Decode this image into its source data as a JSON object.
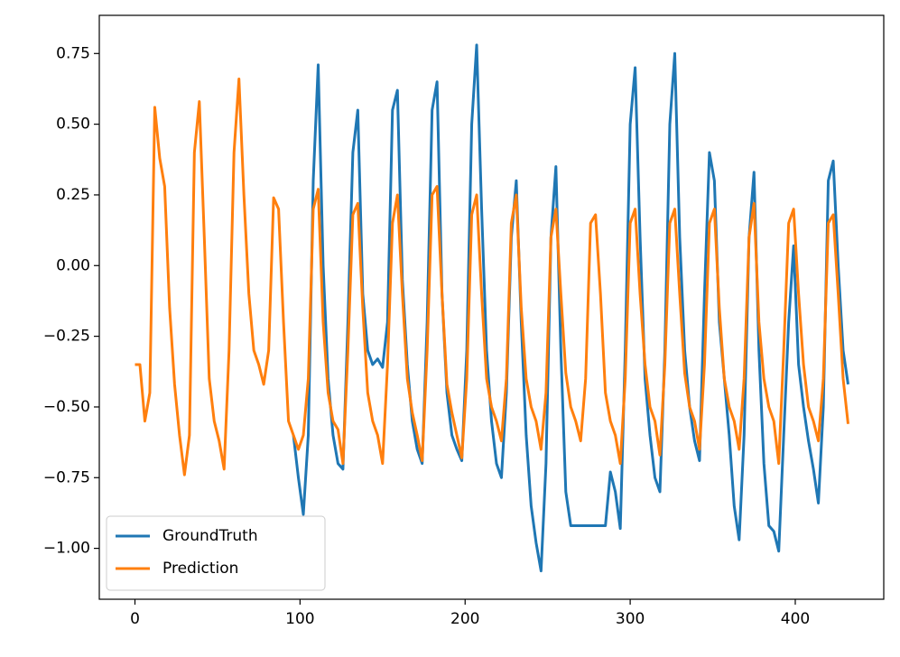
{
  "chart_data": {
    "type": "line",
    "x": [
      0,
      3,
      6,
      9,
      12,
      15,
      18,
      21,
      24,
      27,
      30,
      33,
      36,
      39,
      42,
      45,
      48,
      51,
      54,
      57,
      60,
      63,
      66,
      69,
      72,
      75,
      78,
      81,
      84,
      87,
      90,
      93,
      96,
      99,
      102,
      105,
      108,
      111,
      114,
      117,
      120,
      123,
      126,
      129,
      132,
      135,
      138,
      141,
      144,
      147,
      150,
      153,
      156,
      159,
      162,
      165,
      168,
      171,
      174,
      177,
      180,
      183,
      186,
      189,
      192,
      195,
      198,
      201,
      204,
      207,
      210,
      213,
      216,
      219,
      222,
      225,
      228,
      231,
      234,
      237,
      240,
      243,
      246,
      249,
      252,
      255,
      258,
      261,
      264,
      267,
      270,
      273,
      276,
      279,
      282,
      285,
      288,
      291,
      294,
      297,
      300,
      303,
      306,
      309,
      312,
      315,
      318,
      321,
      324,
      327,
      330,
      333,
      336,
      339,
      342,
      345,
      348,
      351,
      354,
      357,
      360,
      363,
      366,
      369,
      372,
      375,
      378,
      381,
      384,
      387,
      390,
      393,
      396,
      399,
      402,
      405,
      408,
      411,
      414,
      417,
      420,
      423,
      426,
      429,
      432
    ],
    "series": [
      {
        "name": "GroundTruth",
        "color": "#1f77b4",
        "values": [
          null,
          null,
          null,
          null,
          null,
          null,
          null,
          null,
          null,
          null,
          null,
          null,
          null,
          null,
          null,
          null,
          null,
          null,
          null,
          null,
          null,
          null,
          null,
          null,
          null,
          null,
          null,
          null,
          null,
          null,
          null,
          null,
          -0.6,
          -0.75,
          -0.88,
          -0.6,
          0.3,
          0.71,
          0.0,
          -0.4,
          -0.6,
          -0.7,
          -0.72,
          -0.2,
          0.4,
          0.55,
          -0.1,
          -0.3,
          -0.35,
          -0.33,
          -0.36,
          -0.2,
          0.55,
          0.62,
          -0.05,
          -0.35,
          -0.55,
          -0.65,
          -0.7,
          -0.2,
          0.55,
          0.65,
          -0.1,
          -0.45,
          -0.6,
          -0.65,
          -0.69,
          -0.3,
          0.5,
          0.78,
          0.2,
          -0.3,
          -0.55,
          -0.7,
          -0.75,
          -0.45,
          0.1,
          0.3,
          -0.2,
          -0.6,
          -0.85,
          -0.98,
          -1.08,
          -0.7,
          0.1,
          0.35,
          -0.3,
          -0.8,
          -0.92,
          -0.92,
          -0.92,
          -0.92,
          -0.92,
          -0.92,
          -0.92,
          -0.92,
          -0.73,
          -0.8,
          -0.93,
          -0.3,
          0.5,
          0.7,
          0.1,
          -0.4,
          -0.6,
          -0.75,
          -0.8,
          -0.3,
          0.5,
          0.75,
          0.1,
          -0.3,
          -0.5,
          -0.62,
          -0.69,
          -0.1,
          0.4,
          0.3,
          -0.2,
          -0.4,
          -0.6,
          -0.85,
          -0.97,
          -0.6,
          0.1,
          0.33,
          -0.3,
          -0.7,
          -0.92,
          -0.94,
          -1.01,
          -0.6,
          -0.2,
          0.07,
          -0.35,
          -0.5,
          -0.62,
          -0.72,
          -0.84,
          -0.5,
          0.3,
          0.37,
          0.0,
          -0.3,
          -0.42
        ]
      },
      {
        "name": "Prediction",
        "color": "#ff7f0e",
        "values": [
          -0.35,
          -0.35,
          -0.55,
          -0.45,
          0.56,
          0.38,
          0.28,
          -0.15,
          -0.42,
          -0.6,
          -0.74,
          -0.6,
          0.4,
          0.58,
          0.1,
          -0.4,
          -0.55,
          -0.62,
          -0.72,
          -0.3,
          0.4,
          0.66,
          0.25,
          -0.1,
          -0.3,
          -0.35,
          -0.42,
          -0.3,
          0.24,
          0.2,
          -0.2,
          -0.55,
          -0.6,
          -0.65,
          -0.6,
          -0.4,
          0.2,
          0.27,
          -0.2,
          -0.45,
          -0.55,
          -0.58,
          -0.7,
          -0.3,
          0.18,
          0.22,
          -0.15,
          -0.45,
          -0.55,
          -0.6,
          -0.7,
          -0.35,
          0.15,
          0.25,
          -0.1,
          -0.4,
          -0.52,
          -0.6,
          -0.69,
          -0.3,
          0.25,
          0.28,
          -0.1,
          -0.42,
          -0.52,
          -0.6,
          -0.68,
          -0.4,
          0.18,
          0.25,
          -0.1,
          -0.4,
          -0.5,
          -0.55,
          -0.62,
          -0.4,
          0.15,
          0.25,
          -0.15,
          -0.4,
          -0.5,
          -0.55,
          -0.65,
          -0.45,
          0.1,
          0.2,
          -0.1,
          -0.38,
          -0.5,
          -0.55,
          -0.62,
          -0.4,
          0.15,
          0.18,
          -0.1,
          -0.45,
          -0.55,
          -0.6,
          -0.7,
          -0.4,
          0.15,
          0.2,
          -0.1,
          -0.35,
          -0.5,
          -0.55,
          -0.67,
          -0.35,
          0.15,
          0.2,
          -0.1,
          -0.38,
          -0.5,
          -0.55,
          -0.65,
          -0.35,
          0.15,
          0.2,
          -0.15,
          -0.4,
          -0.5,
          -0.55,
          -0.65,
          -0.4,
          0.1,
          0.22,
          -0.2,
          -0.4,
          -0.5,
          -0.55,
          -0.7,
          -0.3,
          0.15,
          0.2,
          -0.1,
          -0.35,
          -0.5,
          -0.55,
          -0.62,
          -0.4,
          0.15,
          0.18,
          -0.1,
          -0.4,
          -0.56
        ]
      }
    ],
    "xlim": [
      -21.6,
      453.6
    ],
    "xticks": [
      0,
      100,
      200,
      300,
      400
    ],
    "ylim": [
      -1.18,
      0.885
    ],
    "yticks": [
      {
        "value": -1.0,
        "label": "−1.00"
      },
      {
        "value": -0.75,
        "label": "−0.75"
      },
      {
        "value": -0.5,
        "label": "−0.50"
      },
      {
        "value": -0.25,
        "label": "−0.25"
      },
      {
        "value": 0.0,
        "label": "0.00"
      },
      0.25,
      {
        "value": 0.5,
        "label": "0.50"
      },
      0.75
    ],
    "legend": "lower left"
  }
}
